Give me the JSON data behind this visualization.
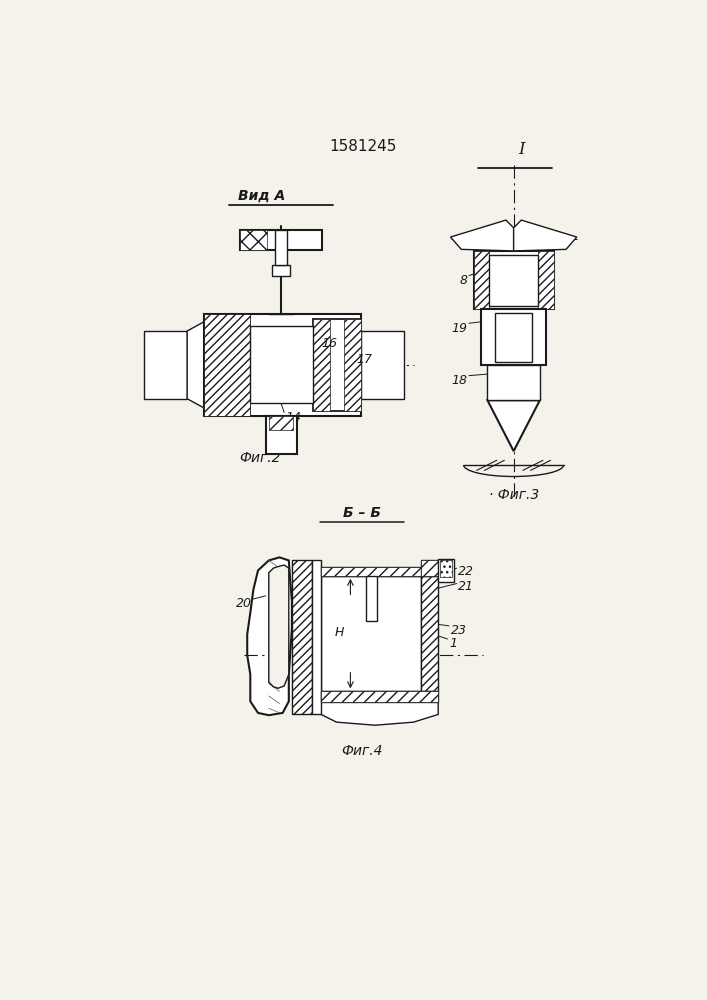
{
  "title": "1581245",
  "bg": "#f5f2ec",
  "lc": "#1a1a1a",
  "fig2_caption": "Фиг.2",
  "fig3_caption": "Фиг.3",
  "fig4_caption": "Фиг.4",
  "vid_a": "Вид A",
  "bb": "Б – Б",
  "label_I": "I",
  "n16": "16",
  "n17": "17",
  "n14": "14",
  "n8": "8",
  "n19": "19",
  "n18": "18",
  "n20": "20",
  "n22": "22",
  "n21": "21",
  "n23": "23",
  "n1": "1",
  "nH": "H"
}
